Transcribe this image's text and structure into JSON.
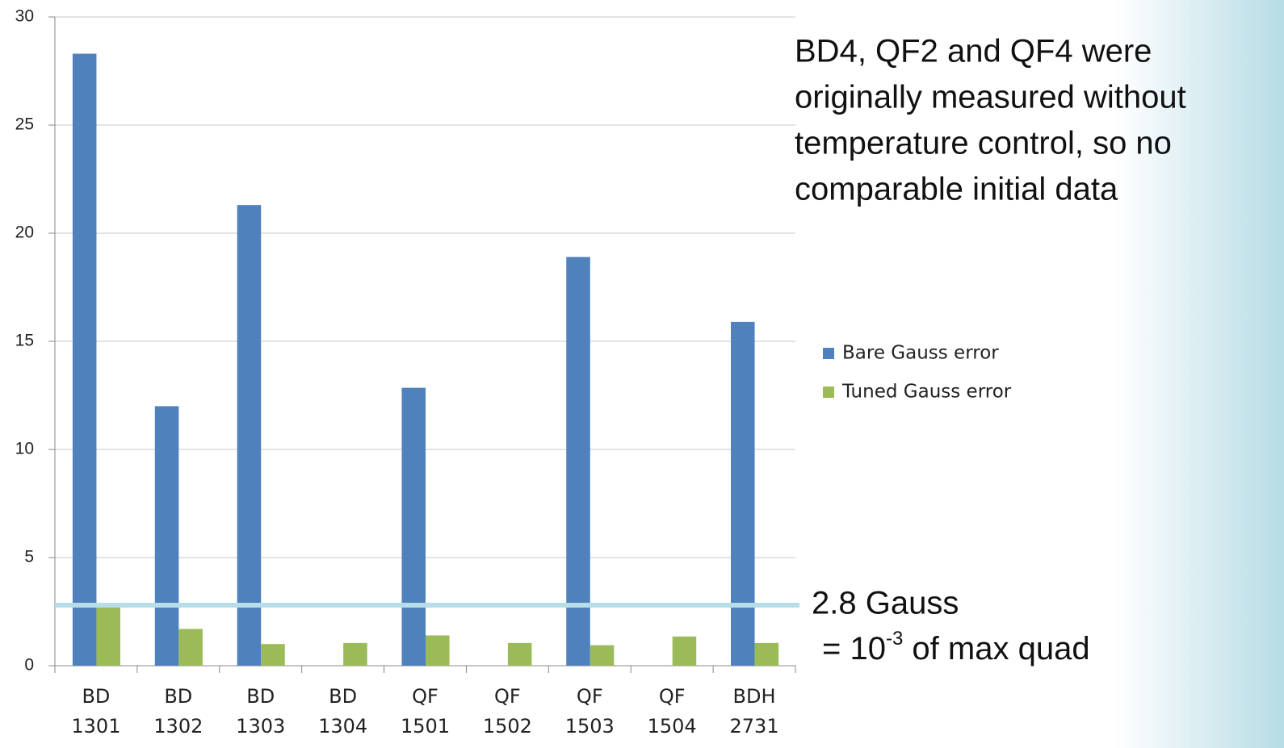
{
  "chart_data": {
    "type": "bar",
    "categories": [
      [
        "BD",
        "1301"
      ],
      [
        "BD",
        "1302"
      ],
      [
        "BD",
        "1303"
      ],
      [
        "BD",
        "1304"
      ],
      [
        "QF",
        "1501"
      ],
      [
        "QF",
        "1502"
      ],
      [
        "QF",
        "1503"
      ],
      [
        "QF",
        "1504"
      ],
      [
        "BDH",
        "2731"
      ]
    ],
    "series": [
      {
        "name": "Bare Gauss error",
        "color": "#4f81bd",
        "values": [
          28.3,
          12.0,
          21.3,
          null,
          12.85,
          null,
          18.9,
          null,
          15.9
        ]
      },
      {
        "name": "Tuned Gauss error",
        "color": "#9bbb59",
        "values": [
          2.75,
          1.7,
          1.0,
          1.05,
          1.4,
          1.05,
          0.95,
          1.35,
          1.05
        ]
      }
    ],
    "ylim": [
      0,
      30
    ],
    "yticks": [
      0,
      5,
      10,
      15,
      20,
      25,
      30
    ],
    "grid": true,
    "reference_line": {
      "value": 2.8,
      "color": "#b7dde8",
      "label": "2.8 Gauss",
      "label_color": "#4bacc6",
      "note": [
        "= 10",
        "-3",
        " of max quad"
      ]
    },
    "annotation": [
      "BD4, QF2 and QF4 were",
      "originally measured without",
      "temperature control, so no",
      "comparable initial data"
    ]
  }
}
